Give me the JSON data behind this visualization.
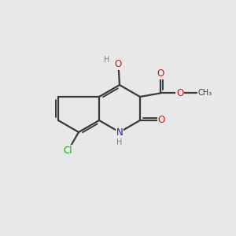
{
  "background_color": "#e8e8e8",
  "bond_color": "#3a3a3a",
  "bond_width": 1.6,
  "atom_colors": {
    "C": "#3a3a3a",
    "N": "#1a1acc",
    "O": "#cc1a1a",
    "Cl": "#1aaa1a",
    "H": "#708090"
  },
  "font_size_atom": 8.5,
  "font_size_small": 7.0,
  "BL": 1.0
}
